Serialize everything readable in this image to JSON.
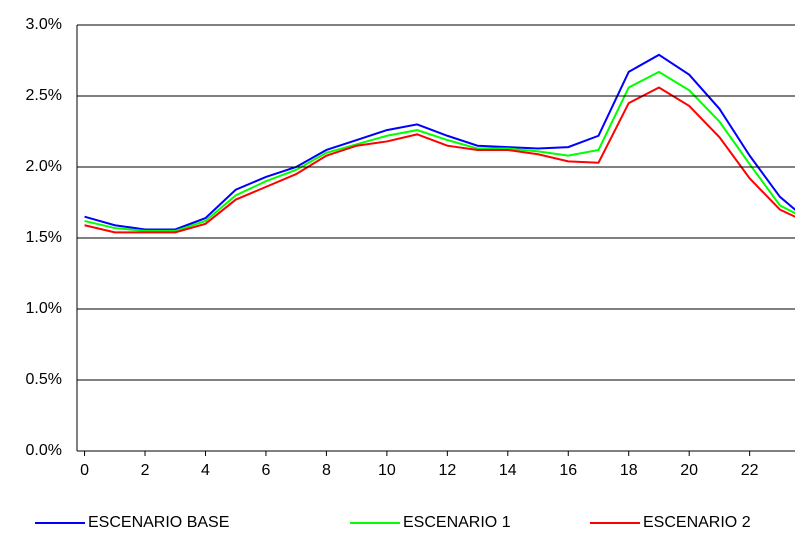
{
  "chart_data": {
    "type": "line",
    "x": [
      0,
      1,
      2,
      3,
      4,
      5,
      6,
      7,
      8,
      9,
      10,
      11,
      12,
      13,
      14,
      15,
      16,
      17,
      18,
      19,
      20,
      21,
      22,
      23,
      24
    ],
    "series": [
      {
        "name": "ESCENARIO BASE",
        "color": "#0000ff",
        "values": [
          1.65,
          1.59,
          1.56,
          1.56,
          1.64,
          1.84,
          1.93,
          2.0,
          2.12,
          2.19,
          2.26,
          2.3,
          2.22,
          2.15,
          2.14,
          2.13,
          2.14,
          2.22,
          2.67,
          2.79,
          2.65,
          2.41,
          2.08,
          1.79,
          1.61
        ]
      },
      {
        "name": "ESCENARIO 1",
        "color": "#00ff00",
        "values": [
          1.62,
          1.57,
          1.55,
          1.55,
          1.62,
          1.8,
          1.9,
          1.98,
          2.1,
          2.16,
          2.22,
          2.26,
          2.19,
          2.13,
          2.13,
          2.11,
          2.08,
          2.12,
          2.56,
          2.67,
          2.54,
          2.32,
          2.02,
          1.73,
          1.62
        ]
      },
      {
        "name": "ESCENARIO 2",
        "color": "#ff0000",
        "values": [
          1.59,
          1.54,
          1.54,
          1.54,
          1.6,
          1.77,
          1.86,
          1.95,
          2.08,
          2.15,
          2.18,
          2.23,
          2.15,
          2.12,
          2.12,
          2.09,
          2.04,
          2.03,
          2.45,
          2.56,
          2.43,
          2.21,
          1.92,
          1.7,
          1.6
        ]
      }
    ],
    "xlim": [
      -0.25,
      23.5
    ],
    "xticks": [
      0,
      2,
      4,
      6,
      8,
      10,
      12,
      14,
      16,
      18,
      20,
      22
    ],
    "ylim": [
      0,
      3
    ],
    "yticks": [
      {
        "value": 0,
        "label": "0.0%"
      },
      {
        "value": 0.5,
        "label": "0.5%"
      },
      {
        "value": 1,
        "label": "1.0%"
      },
      {
        "value": 1.5,
        "label": "1.5%"
      },
      {
        "value": 2,
        "label": "2.0%"
      },
      {
        "value": 2.5,
        "label": "2.5%"
      },
      {
        "value": 3,
        "label": "3.0%"
      }
    ],
    "grid": true,
    "legend": "bottom"
  }
}
